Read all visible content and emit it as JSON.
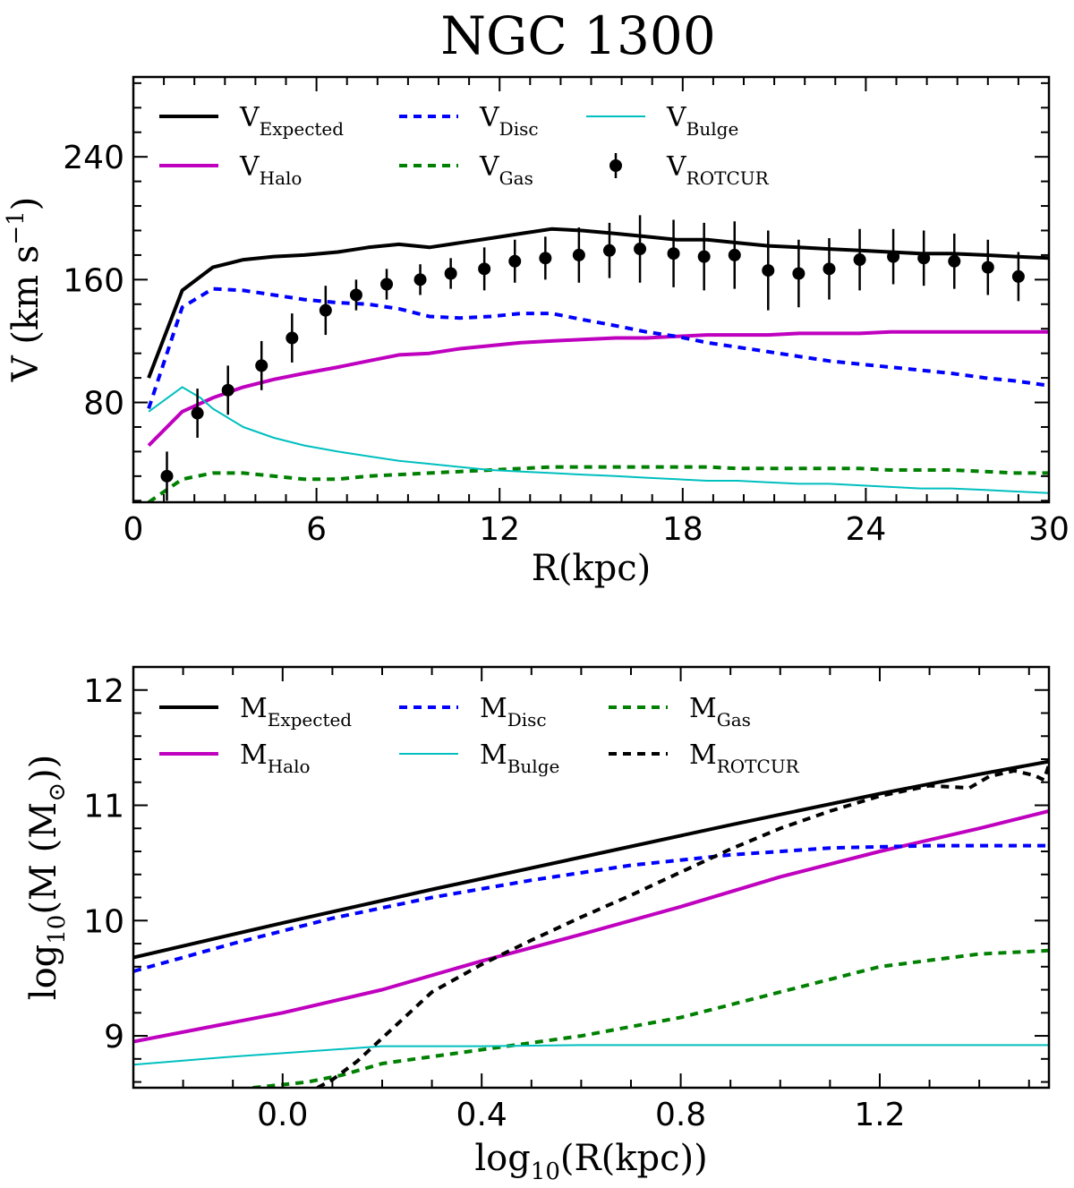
{
  "title": "NGC 1300",
  "chart_data": [
    {
      "type": "line",
      "xlabel": "R(kpc)",
      "ylabel": {
        "main": "V (km s",
        "sup": "−1",
        "close": ")"
      },
      "xlim": [
        0,
        30
      ],
      "ylim": [
        15,
        292
      ],
      "xticks": [
        0,
        6,
        12,
        18,
        24,
        30
      ],
      "yticks": [
        80,
        160,
        240
      ],
      "xminor_step": 1,
      "yminor_step": 16,
      "legend_position": "top",
      "series": [
        {
          "id": "v-expected",
          "name": "V",
          "sub": "Expected",
          "color": "#000000",
          "width": 4,
          "dash": "",
          "x": [
            0.5,
            1.6,
            2.6,
            3.6,
            4.6,
            5.6,
            6.7,
            7.7,
            8.7,
            9.7,
            10.7,
            11.7,
            12.7,
            13.7,
            14.7,
            15.8,
            16.8,
            17.8,
            18.8,
            19.8,
            20.8,
            21.8,
            22.8,
            23.8,
            24.8,
            25.8,
            26.8,
            27.9,
            28.9,
            30.0
          ],
          "values": [
            96,
            153,
            168,
            173,
            175,
            176,
            178,
            181,
            183,
            181,
            184,
            187,
            190,
            193,
            192,
            190,
            188,
            186,
            186,
            184,
            182,
            181,
            180,
            179,
            178,
            177,
            177,
            176,
            175,
            174
          ]
        },
        {
          "id": "v-halo",
          "name": "V",
          "sub": "Halo",
          "color": "#bf00bf",
          "width": 4,
          "dash": "",
          "x": [
            0.5,
            1.6,
            2.6,
            3.6,
            4.6,
            5.6,
            6.7,
            7.7,
            8.7,
            9.7,
            10.7,
            11.7,
            12.7,
            13.7,
            14.7,
            15.8,
            16.8,
            17.8,
            18.8,
            19.8,
            20.8,
            21.8,
            22.8,
            23.8,
            24.8,
            25.8,
            26.8,
            27.9,
            28.9,
            30.0
          ],
          "values": [
            52,
            74,
            83,
            90,
            95,
            99,
            103,
            107,
            111,
            112,
            115,
            117,
            119,
            120,
            121,
            122,
            122,
            123,
            124,
            124,
            124,
            125,
            125,
            125,
            126,
            126,
            126,
            126,
            126,
            126
          ]
        },
        {
          "id": "v-disc",
          "name": "V",
          "sub": "Disc",
          "color": "#0000ff",
          "width": 4,
          "dash": "9,7",
          "x": [
            0.5,
            1.6,
            2.6,
            3.6,
            4.6,
            5.6,
            6.7,
            7.7,
            8.7,
            9.7,
            10.7,
            11.7,
            12.7,
            13.7,
            14.7,
            15.8,
            16.8,
            17.8,
            18.8,
            19.8,
            20.8,
            21.8,
            22.8,
            23.8,
            24.8,
            25.8,
            26.8,
            27.9,
            28.9,
            30.0
          ],
          "values": [
            76,
            142,
            154,
            153,
            150,
            147,
            145,
            144,
            141,
            136,
            135,
            136,
            138,
            138,
            134,
            130,
            126,
            123,
            119,
            116,
            113,
            110,
            107,
            105,
            103,
            101,
            99,
            96,
            94,
            91
          ]
        },
        {
          "id": "v-gas",
          "name": "V",
          "sub": "Gas",
          "color": "#008000",
          "width": 4,
          "dash": "9,7",
          "x": [
            0.5,
            1.6,
            2.6,
            3.6,
            4.6,
            5.6,
            6.7,
            7.7,
            8.7,
            9.7,
            10.7,
            11.7,
            12.7,
            13.7,
            14.7,
            15.8,
            16.8,
            17.8,
            18.8,
            19.8,
            20.8,
            21.8,
            22.8,
            23.8,
            24.8,
            25.8,
            26.8,
            27.9,
            28.9,
            30.0
          ],
          "values": [
            15,
            30,
            34,
            34,
            32,
            30,
            30,
            32,
            33,
            34,
            35,
            36,
            37,
            38,
            38,
            38,
            38,
            38,
            38,
            37,
            37,
            37,
            37,
            37,
            36,
            36,
            36,
            35,
            34,
            34
          ]
        },
        {
          "id": "v-bulge",
          "name": "V",
          "sub": "Bulge",
          "color": "#00bfbf",
          "width": 2,
          "dash": "",
          "x": [
            0.5,
            1.6,
            2.2,
            2.6,
            3.6,
            4.6,
            5.6,
            6.7,
            7.7,
            8.7,
            9.7,
            10.7,
            11.7,
            12.7,
            13.7,
            14.7,
            15.8,
            16.8,
            17.8,
            18.8,
            19.8,
            20.8,
            21.8,
            22.8,
            23.8,
            24.8,
            25.8,
            26.8,
            27.9,
            28.9,
            30.0
          ],
          "values": [
            74,
            90,
            83,
            76,
            64,
            57,
            52,
            48,
            45,
            42,
            40,
            38,
            36,
            35,
            34,
            33,
            32,
            31,
            30,
            29,
            29,
            28,
            27,
            27,
            26,
            25,
            24,
            24,
            23,
            22,
            21
          ]
        }
      ],
      "points": {
        "id": "v-rotcur",
        "name": "V",
        "sub": "ROTCUR",
        "color": "#000000",
        "x": [
          1.1,
          2.1,
          3.1,
          4.2,
          5.2,
          6.3,
          7.3,
          8.3,
          9.4,
          10.4,
          11.5,
          12.5,
          13.5,
          14.6,
          15.6,
          16.6,
          17.7,
          18.7,
          19.7,
          20.8,
          21.8,
          22.8,
          23.8,
          24.9,
          25.9,
          26.9,
          28.0,
          29.0
        ],
        "values": [
          32,
          73,
          88,
          104,
          122,
          140,
          150,
          157,
          160,
          164,
          167,
          172,
          174,
          176,
          179,
          180,
          177,
          175,
          176,
          166,
          164,
          167,
          173,
          175,
          174,
          172,
          168,
          162
        ],
        "errors": [
          16,
          16,
          16,
          16,
          16,
          16,
          10,
          10,
          10,
          10,
          14,
          14,
          14,
          18,
          18,
          22,
          22,
          22,
          22,
          26,
          22,
          20,
          20,
          18,
          18,
          18,
          18,
          16
        ]
      }
    },
    {
      "type": "line",
      "xlabel": "log10(R(kpc))",
      "ylabel": "log10(M (M⊙))",
      "xlim": [
        -0.3,
        1.54
      ],
      "ylim": [
        8.55,
        12.2
      ],
      "xticks": [
        0.0,
        0.4,
        0.8,
        1.2
      ],
      "yticks": [
        9,
        10,
        11,
        12
      ],
      "xminor_step": 0.1,
      "yminor_step": 0.2,
      "legend_position": "top",
      "series": [
        {
          "id": "m-expected",
          "name": "M",
          "sub": "Expected",
          "color": "#000000",
          "width": 4,
          "dash": "",
          "x": [
            -0.3,
            0.0,
            0.3,
            0.6,
            0.9,
            1.2,
            1.4,
            1.54
          ],
          "values": [
            9.68,
            9.98,
            10.27,
            10.55,
            10.83,
            11.1,
            11.27,
            11.38
          ]
        },
        {
          "id": "m-halo",
          "name": "M",
          "sub": "Halo",
          "color": "#bf00bf",
          "width": 4,
          "dash": "",
          "x": [
            -0.3,
            0.0,
            0.2,
            0.4,
            0.6,
            0.8,
            1.0,
            1.2,
            1.4,
            1.54
          ],
          "values": [
            8.95,
            9.2,
            9.4,
            9.65,
            9.88,
            10.12,
            10.38,
            10.6,
            10.8,
            10.95
          ]
        },
        {
          "id": "m-disc",
          "name": "M",
          "sub": "Disc",
          "color": "#0000ff",
          "width": 4,
          "dash": "9,7",
          "x": [
            -0.3,
            -0.1,
            0.1,
            0.3,
            0.5,
            0.7,
            0.9,
            1.1,
            1.3,
            1.54
          ],
          "values": [
            9.56,
            9.8,
            10.02,
            10.2,
            10.35,
            10.48,
            10.57,
            10.63,
            10.65,
            10.65
          ]
        },
        {
          "id": "m-gas",
          "name": "M",
          "sub": "Gas",
          "color": "#008000",
          "width": 4,
          "dash": "9,7",
          "x": [
            -0.06,
            0.05,
            0.12,
            0.2,
            0.4,
            0.6,
            0.8,
            1.0,
            1.2,
            1.4,
            1.54
          ],
          "values": [
            8.55,
            8.6,
            8.66,
            8.76,
            8.88,
            9.0,
            9.16,
            9.38,
            9.6,
            9.71,
            9.74
          ]
        },
        {
          "id": "m-bulge",
          "name": "M",
          "sub": "Bulge",
          "color": "#00bfbf",
          "width": 2,
          "dash": "",
          "x": [
            -0.3,
            -0.1,
            0.1,
            0.2,
            0.4,
            0.6,
            0.8,
            1.0,
            1.2,
            1.4,
            1.54
          ],
          "values": [
            8.75,
            8.82,
            8.88,
            8.91,
            8.91,
            8.92,
            8.92,
            8.92,
            8.92,
            8.92,
            8.92
          ]
        },
        {
          "id": "m-rotcur",
          "name": "M",
          "sub": "ROTCUR",
          "color": "#000000",
          "width": 4,
          "dash": "9,7",
          "x": [
            0.07,
            0.1,
            0.15,
            0.2,
            0.3,
            0.4,
            0.5,
            0.6,
            0.7,
            0.8,
            0.9,
            1.0,
            1.1,
            1.2,
            1.3,
            1.38,
            1.42,
            1.47,
            1.51,
            1.53,
            1.54
          ],
          "values": [
            8.55,
            8.62,
            8.78,
            8.98,
            9.38,
            9.62,
            9.83,
            10.03,
            10.22,
            10.42,
            10.62,
            10.8,
            10.95,
            11.08,
            11.17,
            11.15,
            11.25,
            11.3,
            11.26,
            11.22,
            11.35
          ]
        }
      ]
    }
  ]
}
